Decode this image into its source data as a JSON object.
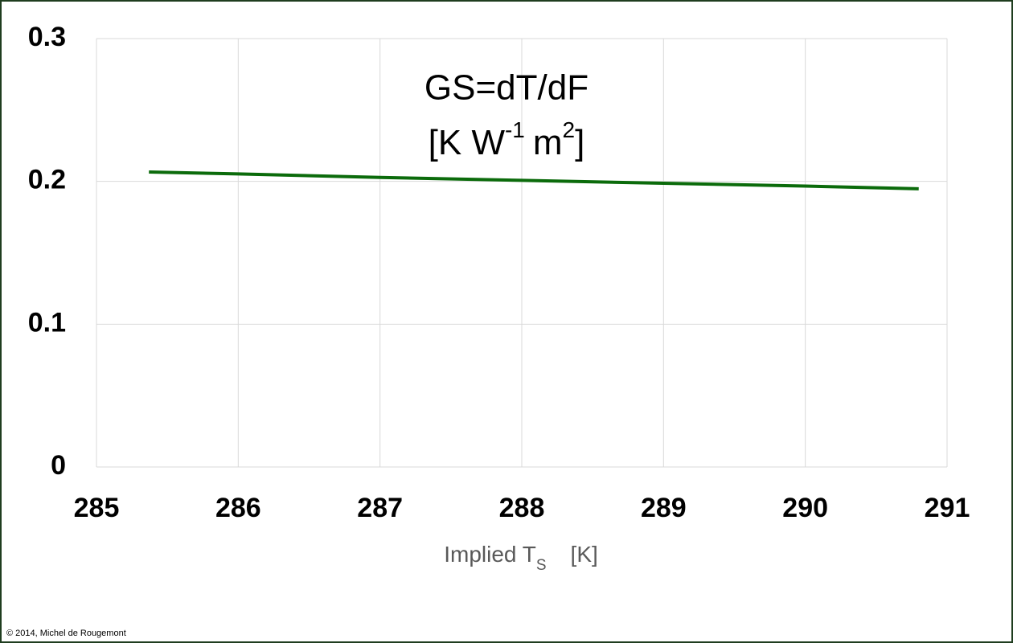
{
  "chart_data": {
    "type": "line",
    "title": "GS=dT/dF",
    "subtitle_parts": [
      "[K W",
      "-1",
      "m",
      "2",
      "]"
    ],
    "xlabel_parts": [
      "Implied T",
      "S",
      "[K]"
    ],
    "credit": "© 2014, Michel de Rougemont",
    "x": [
      285.37,
      286,
      287,
      288,
      289,
      290,
      290.8
    ],
    "series": [
      {
        "name": "GS",
        "color": "#0b6b0b",
        "values": [
          0.2066,
          0.2052,
          0.2028,
          0.2007,
          0.1987,
          0.1967,
          0.1948
        ]
      }
    ],
    "xlim": [
      285,
      291
    ],
    "xticks": [
      285,
      286,
      287,
      288,
      289,
      290,
      291
    ],
    "ylim": [
      0,
      0.3
    ],
    "yticks": [
      0,
      0.1,
      0.2,
      0.3
    ],
    "grid": true
  }
}
